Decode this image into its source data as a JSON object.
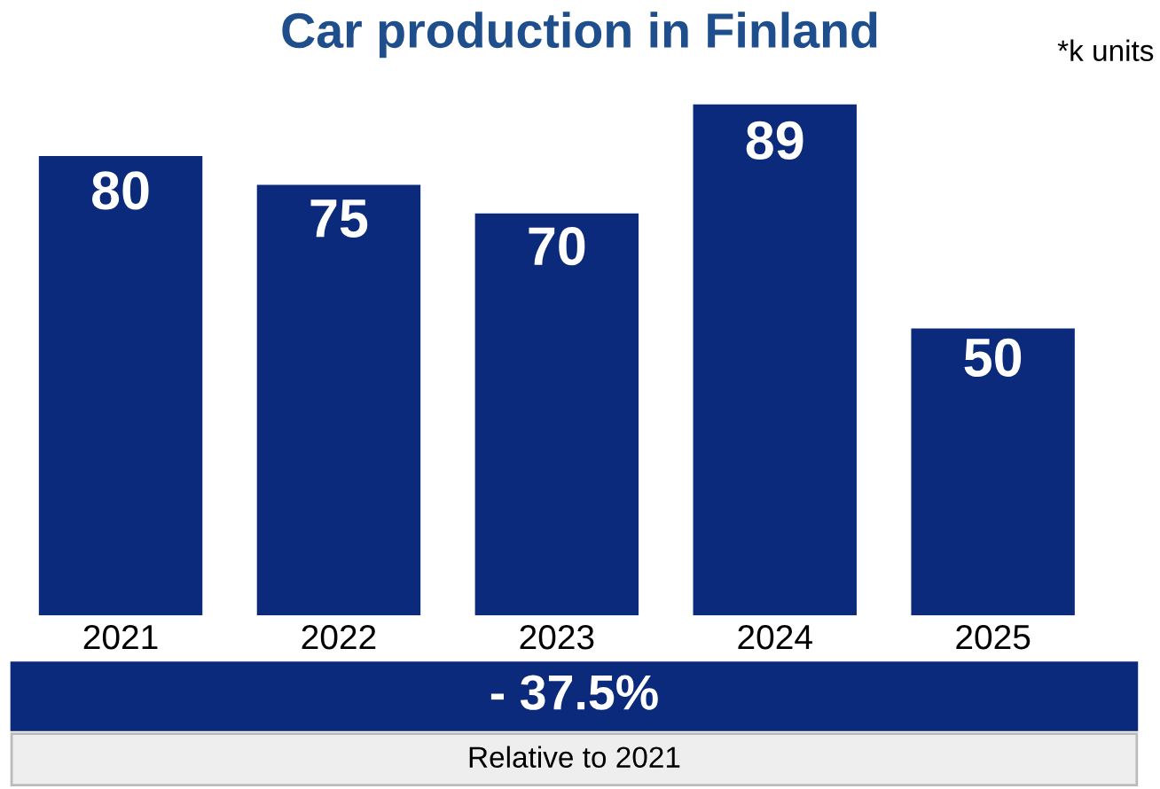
{
  "chart_data": {
    "type": "bar",
    "title": "Car production in Finland",
    "categories": [
      "2021",
      "2022",
      "2023",
      "2024",
      "2025"
    ],
    "values": [
      80,
      75,
      70,
      89,
      50
    ],
    "color": "#0b2a7c",
    "data_labels": true,
    "grid": false,
    "legend": false,
    "tick_labels": "x",
    "annotations": [
      "*k units",
      "- 37.5%",
      "Relative to 2021"
    ]
  }
}
